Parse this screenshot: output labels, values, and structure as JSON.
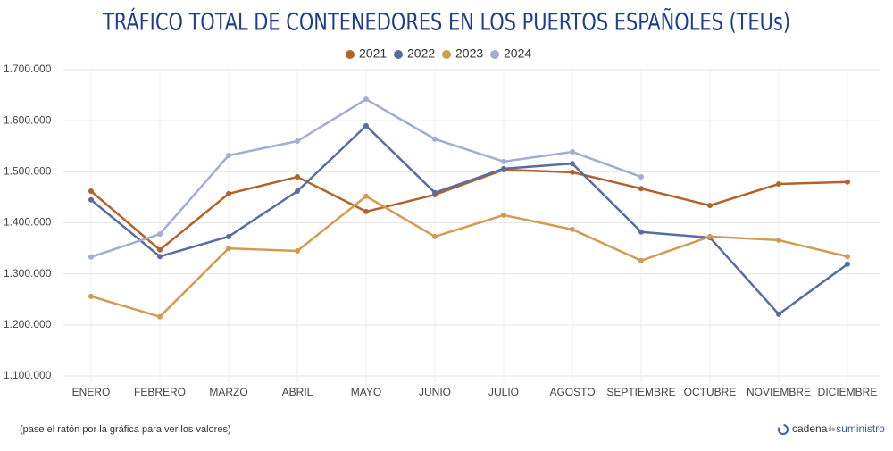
{
  "chart_data": {
    "type": "line",
    "title": "TRÁFICO TOTAL DE CONTENEDORES EN LOS PUERTOS ESPAÑOLES (TEUs)",
    "categories": [
      "ENERO",
      "FEBRERO",
      "MARZO",
      "ABRIL",
      "MAYO",
      "JUNIO",
      "JULIO",
      "AGOSTO",
      "SEPTIEMBRE",
      "OCTUBRE",
      "NOVIEMBRE",
      "DICIEMBRE"
    ],
    "series": [
      {
        "name": "2021",
        "color": "#b3622b",
        "values": [
          1462000,
          1347000,
          1457000,
          1490000,
          1422000,
          1455000,
          1504000,
          1499000,
          1467000,
          1434000,
          1476000,
          1480000
        ]
      },
      {
        "name": "2022",
        "color": "#5a6d9e",
        "values": [
          1445000,
          1334000,
          1373000,
          1462000,
          1590000,
          1459000,
          1506000,
          1516000,
          1382000,
          1371000,
          1221000,
          1319000
        ]
      },
      {
        "name": "2023",
        "color": "#d29b52",
        "values": [
          1256000,
          1216000,
          1350000,
          1345000,
          1452000,
          1373000,
          1415000,
          1387000,
          1326000,
          1373000,
          1366000,
          1334000
        ]
      },
      {
        "name": "2024",
        "color": "#a2acd4",
        "values": [
          1333000,
          1378000,
          1532000,
          1560000,
          1642000,
          1564000,
          1520000,
          1539000,
          1490000,
          null,
          null,
          null
        ]
      }
    ],
    "ylim": [
      1100000,
      1700000
    ],
    "yticks": [
      {
        "value": 1100000,
        "label": "1.100.000"
      },
      {
        "value": 1200000,
        "label": "1.200.000"
      },
      {
        "value": 1300000,
        "label": "1.300.000"
      },
      {
        "value": 1400000,
        "label": "1.400.000"
      },
      {
        "value": 1500000,
        "label": "1.500.000"
      },
      {
        "value": 1600000,
        "label": "1.600.000"
      },
      {
        "value": 1700000,
        "label": "1.700.000"
      }
    ],
    "grid": true,
    "legend": "top"
  },
  "note": "(pase el ratón por la gráfica para ver los valores)",
  "logo": {
    "first": "cadena",
    "middle": "de",
    "last": "suministro"
  }
}
